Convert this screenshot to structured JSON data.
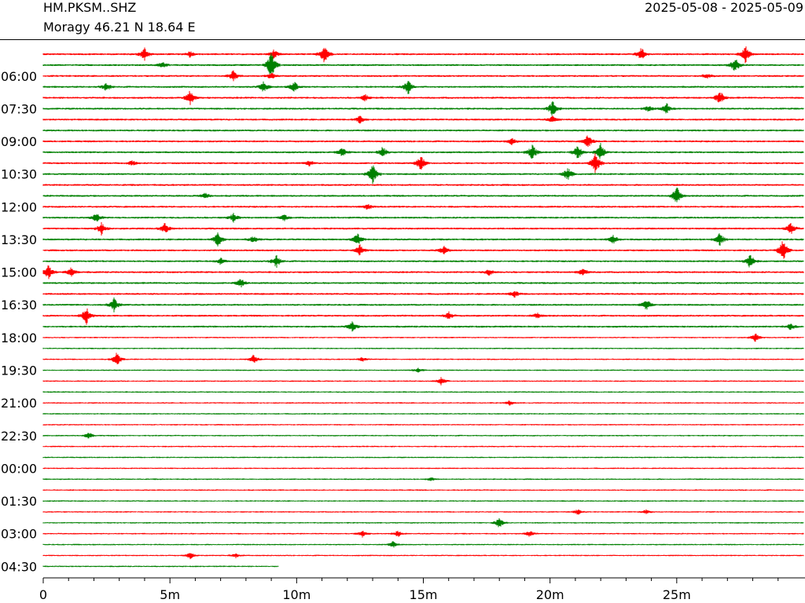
{
  "header": {
    "station": "HM.PKSM..SHZ",
    "location": "Moragy  46.21 N 18.64 E",
    "date_range": "2025-05-08 - 2025-05-09"
  },
  "chart_data": {
    "type": "helicorder",
    "row_colors": [
      "#ff0000",
      "#008000"
    ],
    "row_minutes": 30,
    "row_count": 48,
    "last_row_fraction": 0.31,
    "y_tick_labels": [
      "06:00",
      "07:30",
      "09:00",
      "10:30",
      "12:00",
      "13:30",
      "15:00",
      "16:30",
      "18:00",
      "19:30",
      "21:00",
      "22:30",
      "00:00",
      "01:30",
      "03:00",
      "04:30"
    ],
    "x_ticks": [
      {
        "value": 0,
        "label": "0"
      },
      {
        "value": 5,
        "label": "5m"
      },
      {
        "value": 10,
        "label": "10m"
      },
      {
        "value": 15,
        "label": "15m"
      },
      {
        "value": 20,
        "label": "20m"
      },
      {
        "value": 25,
        "label": "25m"
      }
    ],
    "xlim": [
      0,
      30
    ],
    "events": [
      {
        "row": 0,
        "t": 4.0,
        "amp": 1.2
      },
      {
        "row": 0,
        "t": 5.8,
        "amp": 0.6
      },
      {
        "row": 0,
        "t": 9.1,
        "amp": 0.8
      },
      {
        "row": 0,
        "t": 11.1,
        "amp": 2.0
      },
      {
        "row": 0,
        "t": 23.6,
        "amp": 1.2
      },
      {
        "row": 0,
        "t": 27.7,
        "amp": 1.8
      },
      {
        "row": 1,
        "t": 4.7,
        "amp": 0.6
      },
      {
        "row": 1,
        "t": 9.0,
        "amp": 2.8
      },
      {
        "row": 1,
        "t": 27.3,
        "amp": 1.5
      },
      {
        "row": 2,
        "t": 7.5,
        "amp": 1.0
      },
      {
        "row": 2,
        "t": 9.0,
        "amp": 0.6
      },
      {
        "row": 2,
        "t": 26.2,
        "amp": 0.5
      },
      {
        "row": 3,
        "t": 2.5,
        "amp": 0.8
      },
      {
        "row": 3,
        "t": 8.7,
        "amp": 1.0
      },
      {
        "row": 3,
        "t": 9.9,
        "amp": 1.0
      },
      {
        "row": 3,
        "t": 14.4,
        "amp": 1.4
      },
      {
        "row": 4,
        "t": 5.8,
        "amp": 1.4
      },
      {
        "row": 4,
        "t": 12.7,
        "amp": 0.6
      },
      {
        "row": 4,
        "t": 26.7,
        "amp": 1.4
      },
      {
        "row": 5,
        "t": 20.1,
        "amp": 1.6
      },
      {
        "row": 5,
        "t": 23.9,
        "amp": 0.6
      },
      {
        "row": 5,
        "t": 24.6,
        "amp": 1.0
      },
      {
        "row": 6,
        "t": 12.5,
        "amp": 0.7
      },
      {
        "row": 6,
        "t": 20.1,
        "amp": 0.6
      },
      {
        "row": 8,
        "t": 18.5,
        "amp": 0.6
      },
      {
        "row": 8,
        "t": 21.5,
        "amp": 1.3
      },
      {
        "row": 9,
        "t": 11.8,
        "amp": 0.8
      },
      {
        "row": 9,
        "t": 13.4,
        "amp": 1.0
      },
      {
        "row": 9,
        "t": 19.3,
        "amp": 1.6
      },
      {
        "row": 9,
        "t": 21.1,
        "amp": 1.5
      },
      {
        "row": 9,
        "t": 22.0,
        "amp": 1.6
      },
      {
        "row": 10,
        "t": 3.5,
        "amp": 0.5
      },
      {
        "row": 10,
        "t": 10.5,
        "amp": 0.5
      },
      {
        "row": 10,
        "t": 14.9,
        "amp": 1.5
      },
      {
        "row": 10,
        "t": 21.8,
        "amp": 2.0
      },
      {
        "row": 11,
        "t": 13.0,
        "amp": 2.2
      },
      {
        "row": 11,
        "t": 20.7,
        "amp": 1.3
      },
      {
        "row": 13,
        "t": 6.4,
        "amp": 0.6
      },
      {
        "row": 13,
        "t": 25.0,
        "amp": 1.8
      },
      {
        "row": 14,
        "t": 12.8,
        "amp": 0.6
      },
      {
        "row": 15,
        "t": 2.1,
        "amp": 0.8
      },
      {
        "row": 15,
        "t": 7.5,
        "amp": 0.8
      },
      {
        "row": 15,
        "t": 9.5,
        "amp": 0.6
      },
      {
        "row": 16,
        "t": 2.3,
        "amp": 1.2
      },
      {
        "row": 16,
        "t": 4.8,
        "amp": 1.0
      },
      {
        "row": 16,
        "t": 29.5,
        "amp": 1.2
      },
      {
        "row": 17,
        "t": 6.9,
        "amp": 1.4
      },
      {
        "row": 17,
        "t": 8.3,
        "amp": 0.6
      },
      {
        "row": 17,
        "t": 12.4,
        "amp": 1.2
      },
      {
        "row": 17,
        "t": 22.5,
        "amp": 0.8
      },
      {
        "row": 17,
        "t": 26.7,
        "amp": 1.2
      },
      {
        "row": 18,
        "t": 12.5,
        "amp": 1.0
      },
      {
        "row": 18,
        "t": 15.8,
        "amp": 0.8
      },
      {
        "row": 18,
        "t": 29.2,
        "amp": 2.2
      },
      {
        "row": 19,
        "t": 7.0,
        "amp": 0.6
      },
      {
        "row": 19,
        "t": 9.2,
        "amp": 1.2
      },
      {
        "row": 19,
        "t": 27.9,
        "amp": 1.4
      },
      {
        "row": 20,
        "t": 0.2,
        "amp": 1.4
      },
      {
        "row": 20,
        "t": 1.1,
        "amp": 0.9
      },
      {
        "row": 20,
        "t": 17.6,
        "amp": 0.6
      },
      {
        "row": 20,
        "t": 21.3,
        "amp": 0.8
      },
      {
        "row": 21,
        "t": 7.8,
        "amp": 0.8
      },
      {
        "row": 22,
        "t": 18.6,
        "amp": 0.7
      },
      {
        "row": 23,
        "t": 2.8,
        "amp": 1.3
      },
      {
        "row": 23,
        "t": 23.8,
        "amp": 1.2
      },
      {
        "row": 24,
        "t": 1.7,
        "amp": 1.6
      },
      {
        "row": 24,
        "t": 16.0,
        "amp": 0.7
      },
      {
        "row": 24,
        "t": 19.5,
        "amp": 0.5
      },
      {
        "row": 25,
        "t": 12.2,
        "amp": 1.0
      },
      {
        "row": 25,
        "t": 29.5,
        "amp": 0.6
      },
      {
        "row": 26,
        "t": 28.1,
        "amp": 0.8
      },
      {
        "row": 28,
        "t": 2.9,
        "amp": 1.3
      },
      {
        "row": 28,
        "t": 8.3,
        "amp": 0.8
      },
      {
        "row": 28,
        "t": 12.6,
        "amp": 0.4
      },
      {
        "row": 29,
        "t": 14.8,
        "amp": 0.4
      },
      {
        "row": 30,
        "t": 15.7,
        "amp": 0.8
      },
      {
        "row": 32,
        "t": 18.4,
        "amp": 0.4
      },
      {
        "row": 35,
        "t": 1.8,
        "amp": 0.6
      },
      {
        "row": 39,
        "t": 15.3,
        "amp": 0.3
      },
      {
        "row": 42,
        "t": 21.1,
        "amp": 0.5
      },
      {
        "row": 42,
        "t": 23.8,
        "amp": 0.4
      },
      {
        "row": 43,
        "t": 18.0,
        "amp": 1.0
      },
      {
        "row": 44,
        "t": 12.6,
        "amp": 0.6
      },
      {
        "row": 44,
        "t": 14.0,
        "amp": 0.6
      },
      {
        "row": 44,
        "t": 19.2,
        "amp": 0.6
      },
      {
        "row": 45,
        "t": 13.8,
        "amp": 0.6
      },
      {
        "row": 46,
        "t": 5.8,
        "amp": 0.6
      },
      {
        "row": 46,
        "t": 7.6,
        "amp": 0.4
      }
    ]
  }
}
